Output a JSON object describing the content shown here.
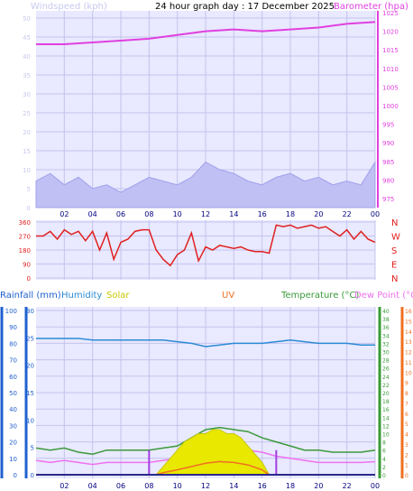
{
  "header": {
    "title": "24 hour graph day : 17 December 2025",
    "left_label": "Windspeed (kph)",
    "right_label": "Barometer (hpa)"
  },
  "chart_data": [
    {
      "type": "line",
      "panel": "wind-barometer",
      "x_ticks": [
        "02",
        "04",
        "06",
        "08",
        "10",
        "12",
        "14",
        "16",
        "18",
        "20",
        "22",
        "00"
      ],
      "left_axis": {
        "label": "Windspeed (kph)",
        "ylim": [
          0,
          50
        ],
        "ticks": [
          0,
          5,
          10,
          15,
          20,
          25,
          30,
          35,
          40,
          45,
          50
        ]
      },
      "right_axis": {
        "label": "Barometer (hpa)",
        "ylim": [
          975,
          1025
        ],
        "ticks": [
          975,
          980,
          985,
          990,
          995,
          1000,
          1005,
          1010,
          1015,
          1020,
          1025
        ]
      },
      "grid": true,
      "series": [
        {
          "name": "Barometer (hpa)",
          "color": "#e040e0",
          "axis": "right",
          "x": [
            0,
            2,
            4,
            6,
            8,
            10,
            12,
            14,
            16,
            18,
            20,
            22,
            24
          ],
          "values": [
            1016.5,
            1016.5,
            1017,
            1017.5,
            1018,
            1019,
            1020,
            1020.5,
            1020,
            1020.5,
            1021,
            1022,
            1022.5
          ]
        },
        {
          "color": "#2020c0",
          "axis": "left",
          "x": [
            0,
            1,
            2,
            3,
            4,
            5,
            6,
            7,
            8,
            9,
            10,
            11,
            12,
            13,
            14,
            15,
            16,
            17,
            18,
            19,
            20,
            21,
            22,
            23,
            24
          ],
          "values": [
            2,
            5,
            3,
            4,
            1,
            2,
            1,
            2,
            4,
            3,
            2,
            4,
            6,
            5,
            4,
            3,
            2,
            3,
            4,
            3,
            4,
            2,
            3,
            2,
            3
          ]
        },
        {
          "color": "#9a9ae8",
          "axis": "left",
          "x": [
            0,
            1,
            2,
            3,
            4,
            5,
            6,
            7,
            8,
            9,
            10,
            11,
            12,
            13,
            14,
            15,
            16,
            17,
            18,
            19,
            20,
            21,
            22,
            23,
            24
          ],
          "values": [
            7,
            9,
            6,
            8,
            5,
            6,
            4,
            6,
            8,
            7,
            6,
            8,
            12,
            10,
            9,
            7,
            6,
            8,
            9,
            7,
            8,
            6,
            7,
            6,
            12
          ]
        }
      ]
    },
    {
      "type": "scatter",
      "panel": "wind-direction",
      "x_ticks": [
        "02",
        "04",
        "06",
        "08",
        "10",
        "12",
        "14",
        "16",
        "18",
        "20",
        "22",
        "00"
      ],
      "left_axis": {
        "ylim": [
          0,
          360
        ],
        "ticks": [
          0,
          90,
          180,
          270,
          360
        ]
      },
      "right_axis": {
        "ticks": [
          "N",
          "W",
          "S",
          "E",
          "N"
        ]
      },
      "grid": true,
      "series": [
        {
          "color": "#e02020",
          "x": [
            0,
            0.5,
            1,
            1.5,
            2,
            2.5,
            3,
            3.5,
            4,
            4.5,
            5,
            5.5,
            6,
            6.5,
            7,
            7.5,
            8,
            8.5,
            9,
            9.5,
            10,
            10.5,
            11,
            11.5,
            12,
            12.5,
            13,
            13.5,
            14,
            14.5,
            15,
            15.5,
            16,
            16.5,
            17,
            17.5,
            18,
            18.5,
            19,
            19.5,
            20,
            20.5,
            21,
            21.5,
            22,
            22.5,
            23,
            23.5,
            24
          ],
          "values": [
            270,
            270,
            300,
            250,
            310,
            280,
            300,
            240,
            300,
            180,
            290,
            120,
            230,
            250,
            300,
            310,
            310,
            180,
            120,
            80,
            150,
            180,
            290,
            110,
            200,
            180,
            210,
            200,
            190,
            200,
            180,
            170,
            170,
            160,
            340,
            330,
            340,
            320,
            330,
            340,
            320,
            330,
            300,
            270,
            310,
            250,
            300,
            250,
            230
          ]
        }
      ]
    },
    {
      "type": "line",
      "panel": "rain-humidity-temperature",
      "labels": {
        "rainfall": "Rainfall (mm)",
        "humidity": "Humidity",
        "solar": "Solar",
        "uv": "UV",
        "temperature": "Temperature (°C)",
        "dewpoint": "Dew Point (°C)"
      },
      "x_ticks": [
        "02",
        "04",
        "06",
        "08",
        "10",
        "12",
        "14",
        "16",
        "18",
        "20",
        "22",
        "00"
      ],
      "axes": {
        "humidity_ticks": [
          0,
          10,
          20,
          30,
          40,
          50,
          60,
          70,
          80,
          90,
          100
        ],
        "rainfall_ticks": [
          0,
          5,
          10,
          15,
          20,
          25,
          30
        ],
        "temperature_ticks": [
          0,
          2,
          4,
          6,
          8,
          10,
          12,
          14,
          16,
          18,
          20,
          22,
          24,
          26,
          28,
          30,
          32,
          34,
          36,
          38,
          40
        ],
        "dewpoint_ticks": [
          0,
          1,
          2,
          3,
          4,
          5,
          6,
          7,
          8,
          9,
          10,
          11,
          12,
          13,
          14,
          15,
          16
        ],
        "humidity_ylim": [
          0,
          100
        ],
        "temperature_ylim": [
          0,
          40
        ]
      },
      "grid": true,
      "series": [
        {
          "name": "Humidity",
          "color": "#2a8ad4",
          "x": [
            0,
            1,
            2,
            3,
            4,
            5,
            6,
            7,
            8,
            9,
            10,
            11,
            12,
            13,
            14,
            15,
            16,
            17,
            18,
            19,
            20,
            21,
            22,
            23,
            24
          ],
          "values": [
            83,
            83,
            83,
            83,
            82,
            82,
            82,
            82,
            82,
            82,
            81,
            80,
            78,
            79,
            80,
            80,
            80,
            81,
            82,
            81,
            80,
            80,
            80,
            79,
            79
          ]
        },
        {
          "name": "Temperature (°C)",
          "color": "#3a9a3a",
          "x": [
            0,
            1,
            2,
            3,
            4,
            5,
            6,
            7,
            8,
            9,
            10,
            11,
            12,
            13,
            14,
            15,
            16,
            17,
            18,
            19,
            20,
            21,
            22,
            23,
            24
          ],
          "values": [
            6.5,
            6,
            6.5,
            5.5,
            5,
            6,
            6,
            6,
            6,
            6.5,
            7,
            9,
            11,
            11.5,
            11,
            10.5,
            9,
            8,
            7,
            6,
            6,
            5.5,
            5.5,
            5.5,
            6
          ]
        },
        {
          "name": "Dew Point (°C)",
          "color": "#f070f0",
          "x": [
            0,
            1,
            2,
            3,
            4,
            5,
            6,
            7,
            8,
            9,
            10,
            11,
            12,
            13,
            14,
            15,
            16,
            17,
            18,
            19,
            20,
            21,
            22,
            23,
            24
          ],
          "values": [
            3.5,
            3,
            3.5,
            3,
            2.5,
            3,
            3,
            3,
            3,
            3.5,
            4,
            5,
            6,
            6.5,
            6.5,
            6,
            5.5,
            4.5,
            4,
            3.5,
            3,
            3,
            3,
            3,
            3.2
          ]
        },
        {
          "name": "Solar",
          "color": "#e8e800",
          "type": "area",
          "x": [
            8.5,
            9,
            9.5,
            10,
            10.5,
            11,
            11.5,
            12,
            12.5,
            13,
            13.5,
            14,
            14.5,
            15,
            15.5,
            16,
            16.5
          ],
          "values": [
            0,
            2,
            4,
            6,
            8,
            9,
            10,
            10,
            11,
            11,
            10,
            10,
            9,
            7,
            5,
            3,
            0
          ]
        },
        {
          "name": "UV",
          "color": "#f07020",
          "x": [
            8.5,
            9,
            10,
            11,
            12,
            13,
            14,
            15,
            16,
            16.5
          ],
          "values": [
            0,
            0.5,
            1.2,
            2.0,
            2.8,
            3.2,
            3.0,
            2.4,
            1.2,
            0
          ]
        },
        {
          "name": "Rainfall (mm)",
          "color": "#a040e0",
          "type": "bar",
          "x": [
            8,
            17
          ],
          "values": [
            3,
            3
          ]
        }
      ]
    }
  ]
}
